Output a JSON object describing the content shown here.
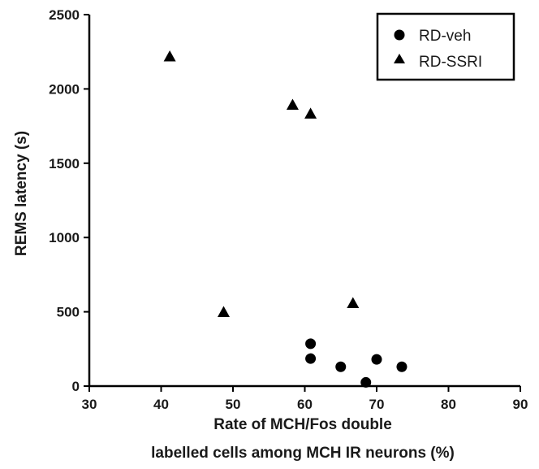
{
  "chart_data": {
    "type": "scatter",
    "title": "",
    "xlabel_lines": [
      "Rate of MCH/Fos double",
      "labelled cells among MCH IR neurons (%)"
    ],
    "ylabel": "REMS latency (s)",
    "xlim": [
      30,
      90
    ],
    "ylim": [
      0,
      2500
    ],
    "xticks": [
      "30",
      "40",
      "50",
      "60",
      "70",
      "80",
      "90"
    ],
    "yticks": [
      "0",
      "500",
      "1000",
      "1500",
      "2000",
      "2500"
    ],
    "grid": false,
    "legend_position": "top-right",
    "series": [
      {
        "name": "RD-veh",
        "marker": "circle",
        "color": "#000000",
        "points": [
          {
            "x": 60.8,
            "y": 285
          },
          {
            "x": 60.8,
            "y": 185
          },
          {
            "x": 65.0,
            "y": 130
          },
          {
            "x": 68.5,
            "y": 25
          },
          {
            "x": 70.0,
            "y": 180
          },
          {
            "x": 73.5,
            "y": 130
          }
        ]
      },
      {
        "name": "RD-SSRI",
        "marker": "triangle",
        "color": "#000000",
        "points": [
          {
            "x": 41.2,
            "y": 2215
          },
          {
            "x": 58.3,
            "y": 1890
          },
          {
            "x": 60.8,
            "y": 1830
          },
          {
            "x": 48.7,
            "y": 495
          },
          {
            "x": 66.7,
            "y": 555
          }
        ]
      }
    ]
  }
}
